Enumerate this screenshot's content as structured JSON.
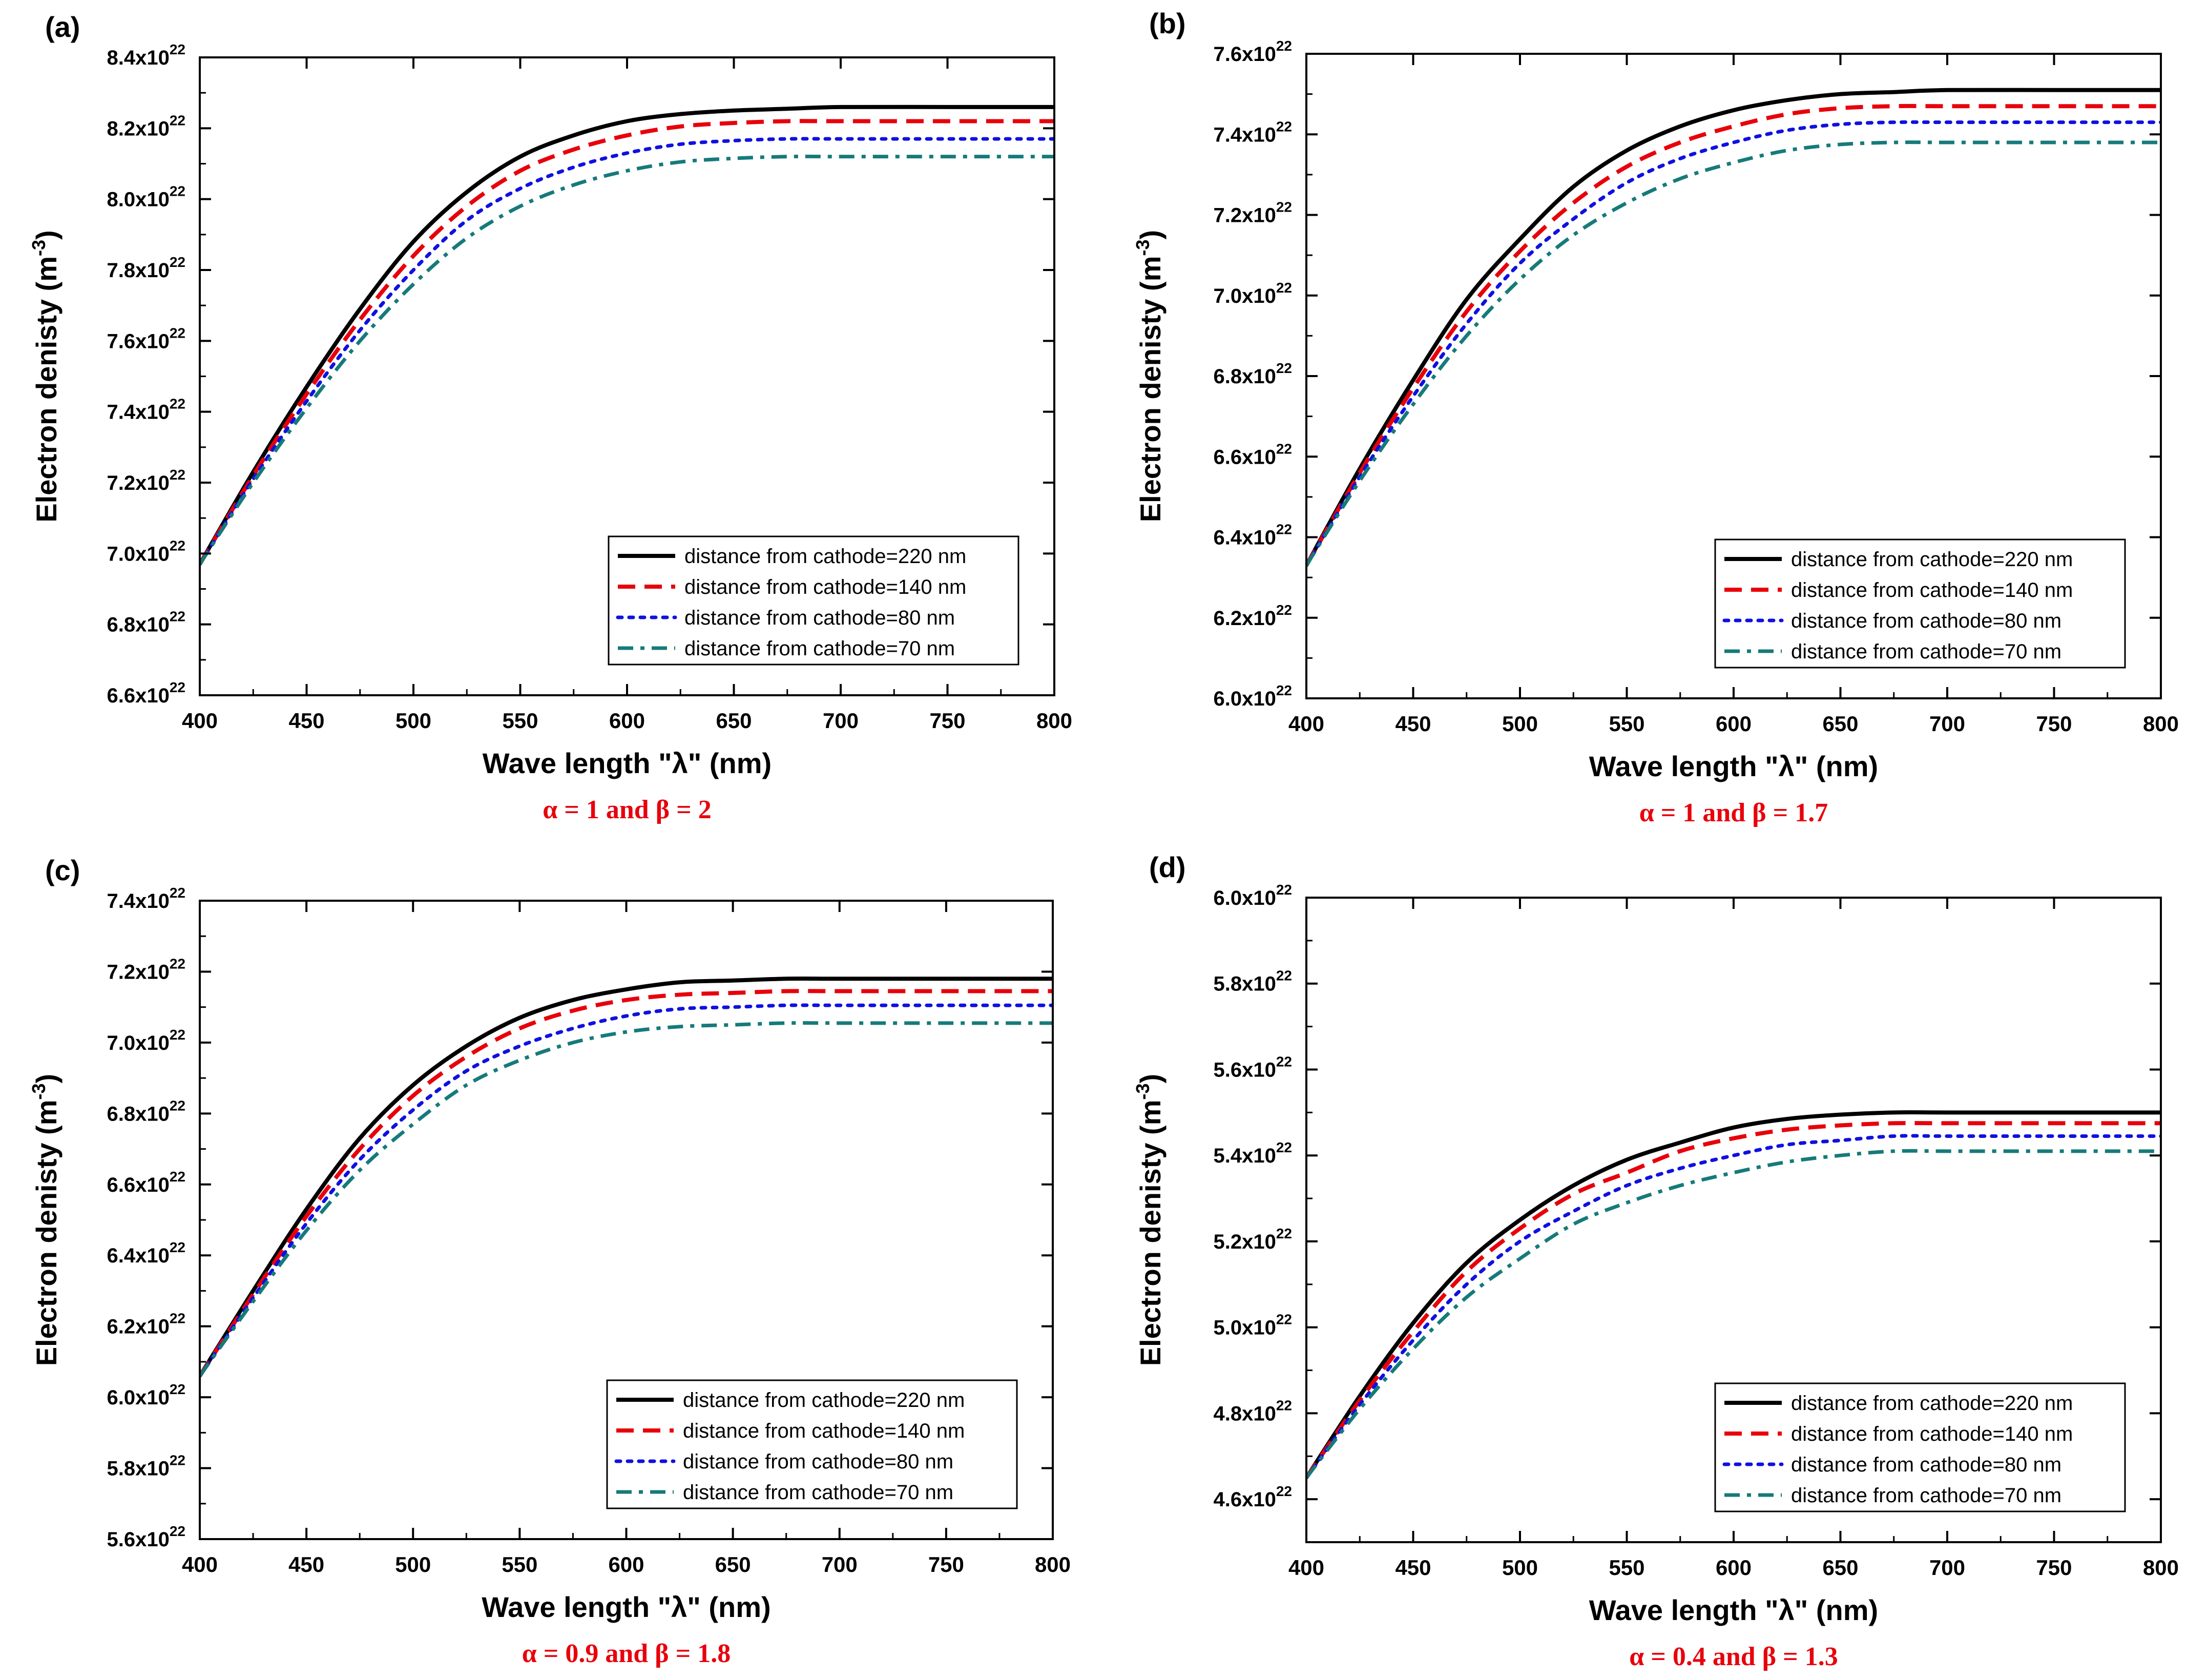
{
  "figure": {
    "xlabel": "Wave length \"λ\" (nm)",
    "ylabel": "Electron denisty (m",
    "ylabel_sup": "-3",
    "x_ticks": [
      "400",
      "450",
      "500",
      "550",
      "600",
      "650",
      "700",
      "750",
      "800"
    ],
    "xlim": [
      400,
      800
    ],
    "legend": [
      {
        "label": "distance from cathode=220 nm",
        "color": "#000000",
        "style": "solid"
      },
      {
        "label": "distance from cathode=140 nm",
        "color": "#e8000b",
        "style": "dash"
      },
      {
        "label": "distance from cathode=80 nm",
        "color": "#1010e0",
        "style": "dot"
      },
      {
        "label": "distance from cathode=70 nm",
        "color": "#167a7a",
        "style": "dashdot"
      }
    ]
  },
  "chart_data": [
    {
      "type": "line",
      "panel_label": "(a)",
      "condition": "α = 1 and β = 2",
      "ylim": [
        6.6,
        8.4
      ],
      "y_ticks": [
        {
          "mant": "6.6x10",
          "exp": "22"
        },
        {
          "mant": "6.8x10",
          "exp": "22"
        },
        {
          "mant": "7.0x10",
          "exp": "22"
        },
        {
          "mant": "7.2x10",
          "exp": "22"
        },
        {
          "mant": "7.4x10",
          "exp": "22"
        },
        {
          "mant": "7.6x10",
          "exp": "22"
        },
        {
          "mant": "7.8x10",
          "exp": "22"
        },
        {
          "mant": "8.0x10",
          "exp": "22"
        },
        {
          "mant": "8.2x10",
          "exp": "22"
        },
        {
          "mant": "8.4x10",
          "exp": "22"
        }
      ],
      "y_unit_scale": "x10^22 m^-3",
      "x": [
        400,
        425,
        450,
        475,
        500,
        525,
        550,
        575,
        600,
        625,
        650,
        675,
        700,
        750,
        800
      ],
      "series": [
        {
          "name": "distance from cathode=220 nm",
          "values": [
            6.97,
            7.23,
            7.47,
            7.69,
            7.88,
            8.02,
            8.12,
            8.18,
            8.22,
            8.24,
            8.25,
            8.255,
            8.26,
            8.26,
            8.26
          ]
        },
        {
          "name": "distance from cathode=140 nm",
          "values": [
            6.97,
            7.22,
            7.45,
            7.66,
            7.84,
            7.98,
            8.08,
            8.14,
            8.18,
            8.205,
            8.215,
            8.22,
            8.22,
            8.22,
            8.22
          ]
        },
        {
          "name": "distance from cathode=80 nm",
          "values": [
            6.97,
            7.21,
            7.43,
            7.63,
            7.8,
            7.94,
            8.03,
            8.09,
            8.13,
            8.155,
            8.165,
            8.17,
            8.17,
            8.17,
            8.17
          ]
        },
        {
          "name": "distance from cathode=70 nm",
          "values": [
            6.97,
            7.2,
            7.41,
            7.6,
            7.76,
            7.89,
            7.98,
            8.04,
            8.08,
            8.105,
            8.115,
            8.12,
            8.12,
            8.12,
            8.12
          ]
        }
      ]
    },
    {
      "type": "line",
      "panel_label": "(b)",
      "condition": "α = 1 and β = 1.7",
      "ylim": [
        6.0,
        7.6
      ],
      "y_ticks": [
        {
          "mant": "6.0x10",
          "exp": "22"
        },
        {
          "mant": "6.2x10",
          "exp": "22"
        },
        {
          "mant": "6.4x10",
          "exp": "22"
        },
        {
          "mant": "6.6x10",
          "exp": "22"
        },
        {
          "mant": "6.8x10",
          "exp": "22"
        },
        {
          "mant": "7.0x10",
          "exp": "22"
        },
        {
          "mant": "7.2x10",
          "exp": "22"
        },
        {
          "mant": "7.4x10",
          "exp": "22"
        },
        {
          "mant": "7.6x10",
          "exp": "22"
        }
      ],
      "y_unit_scale": "x10^22 m^-3",
      "x": [
        400,
        425,
        450,
        475,
        500,
        525,
        550,
        575,
        600,
        625,
        650,
        675,
        700,
        750,
        800
      ],
      "series": [
        {
          "name": "distance from cathode=220 nm",
          "values": [
            6.33,
            6.57,
            6.79,
            6.99,
            7.14,
            7.27,
            7.36,
            7.42,
            7.46,
            7.485,
            7.5,
            7.505,
            7.51,
            7.51,
            7.51
          ]
        },
        {
          "name": "distance from cathode=140 nm",
          "values": [
            6.33,
            6.56,
            6.77,
            6.96,
            7.11,
            7.23,
            7.32,
            7.38,
            7.42,
            7.45,
            7.465,
            7.47,
            7.47,
            7.47,
            7.47
          ]
        },
        {
          "name": "distance from cathode=80 nm",
          "values": [
            6.33,
            6.55,
            6.75,
            6.93,
            7.08,
            7.19,
            7.28,
            7.34,
            7.38,
            7.41,
            7.425,
            7.43,
            7.43,
            7.43,
            7.43
          ]
        },
        {
          "name": "distance from cathode=70 nm",
          "values": [
            6.33,
            6.54,
            6.73,
            6.9,
            7.04,
            7.15,
            7.23,
            7.29,
            7.33,
            7.36,
            7.375,
            7.38,
            7.38,
            7.38,
            7.38
          ]
        }
      ]
    },
    {
      "type": "line",
      "panel_label": "(c)",
      "condition": "α = 0.9 and β = 1.8",
      "ylim": [
        5.6,
        7.4
      ],
      "y_ticks": [
        {
          "mant": "5.6x10",
          "exp": "22"
        },
        {
          "mant": "5.8x10",
          "exp": "22"
        },
        {
          "mant": "6.0x10",
          "exp": "22"
        },
        {
          "mant": "6.2x10",
          "exp": "22"
        },
        {
          "mant": "6.4x10",
          "exp": "22"
        },
        {
          "mant": "6.6x10",
          "exp": "22"
        },
        {
          "mant": "6.8x10",
          "exp": "22"
        },
        {
          "mant": "7.0x10",
          "exp": "22"
        },
        {
          "mant": "7.2x10",
          "exp": "22"
        },
        {
          "mant": "7.4x10",
          "exp": "22"
        }
      ],
      "y_unit_scale": "x10^22 m^-3",
      "x": [
        400,
        425,
        450,
        475,
        500,
        525,
        550,
        575,
        600,
        625,
        650,
        675,
        700,
        750,
        800
      ],
      "series": [
        {
          "name": "distance from cathode=220 nm",
          "values": [
            6.06,
            6.3,
            6.53,
            6.73,
            6.88,
            6.99,
            7.07,
            7.12,
            7.15,
            7.17,
            7.175,
            7.18,
            7.18,
            7.18,
            7.18
          ]
        },
        {
          "name": "distance from cathode=140 nm",
          "values": [
            6.06,
            6.29,
            6.51,
            6.7,
            6.85,
            6.96,
            7.04,
            7.09,
            7.12,
            7.135,
            7.14,
            7.145,
            7.145,
            7.145,
            7.145
          ]
        },
        {
          "name": "distance from cathode=80 nm",
          "values": [
            6.06,
            6.28,
            6.49,
            6.67,
            6.81,
            6.92,
            6.99,
            7.04,
            7.075,
            7.095,
            7.1,
            7.105,
            7.105,
            7.105,
            7.105
          ]
        },
        {
          "name": "distance from cathode=70 nm",
          "values": [
            6.06,
            6.27,
            6.47,
            6.64,
            6.77,
            6.88,
            6.95,
            7.0,
            7.03,
            7.045,
            7.05,
            7.055,
            7.055,
            7.055,
            7.055
          ]
        }
      ]
    },
    {
      "type": "line",
      "panel_label": "(d)",
      "condition": "α = 0.4 and β = 1.3",
      "ylim": [
        4.5,
        6.0
      ],
      "y_ticks": [
        {
          "mant": "4.6x10",
          "exp": "22"
        },
        {
          "mant": "4.8x10",
          "exp": "22"
        },
        {
          "mant": "5.0x10",
          "exp": "22"
        },
        {
          "mant": "5.2x10",
          "exp": "22"
        },
        {
          "mant": "5.4x10",
          "exp": "22"
        },
        {
          "mant": "5.6x10",
          "exp": "22"
        },
        {
          "mant": "5.8x10",
          "exp": "22"
        },
        {
          "mant": "6.0x10",
          "exp": "22"
        }
      ],
      "y_unit_scale": "x10^22 m^-3",
      "x": [
        400,
        425,
        450,
        475,
        500,
        525,
        550,
        575,
        600,
        625,
        650,
        675,
        700,
        750,
        800
      ],
      "series": [
        {
          "name": "distance from cathode=220 nm",
          "values": [
            4.65,
            4.84,
            5.01,
            5.15,
            5.25,
            5.33,
            5.39,
            5.43,
            5.465,
            5.485,
            5.495,
            5.5,
            5.5,
            5.5,
            5.5
          ]
        },
        {
          "name": "distance from cathode=140 nm",
          "values": [
            4.65,
            4.83,
            4.99,
            5.13,
            5.23,
            5.31,
            5.36,
            5.41,
            5.44,
            5.46,
            5.47,
            5.475,
            5.475,
            5.475,
            5.475
          ]
        },
        {
          "name": "distance from cathode=80 nm",
          "values": [
            4.65,
            4.82,
            4.97,
            5.1,
            5.2,
            5.27,
            5.33,
            5.37,
            5.4,
            5.425,
            5.435,
            5.445,
            5.445,
            5.445,
            5.445
          ]
        },
        {
          "name": "distance from cathode=70 nm",
          "values": [
            4.65,
            4.81,
            4.95,
            5.07,
            5.16,
            5.24,
            5.29,
            5.33,
            5.36,
            5.385,
            5.4,
            5.41,
            5.41,
            5.41,
            5.41
          ]
        }
      ]
    }
  ]
}
